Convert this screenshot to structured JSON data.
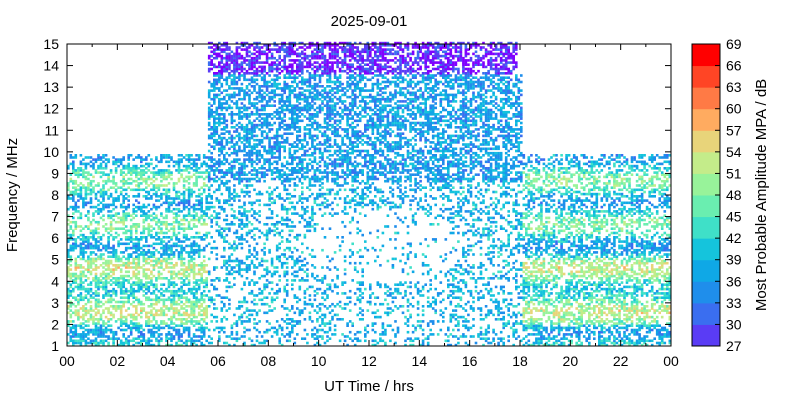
{
  "chart_data": {
    "type": "heatmap",
    "title": "2025-09-01",
    "xlabel": "UT Time / hrs",
    "ylabel": "Frequency / MHz",
    "colorbar_label": "Most Probable Amplitude MPA / dB",
    "xlim": [
      0,
      24
    ],
    "ylim": [
      1,
      15
    ],
    "x_ticks": [
      "00",
      "02",
      "04",
      "06",
      "08",
      "10",
      "12",
      "14",
      "16",
      "18",
      "20",
      "22",
      "00"
    ],
    "y_ticks": [
      "1",
      "2",
      "3",
      "4",
      "5",
      "6",
      "7",
      "8",
      "9",
      "10",
      "11",
      "12",
      "13",
      "14",
      "15"
    ],
    "colorbar_ticks": [
      "27",
      "30",
      "33",
      "36",
      "39",
      "42",
      "45",
      "48",
      "51",
      "54",
      "57",
      "60",
      "63",
      "66",
      "69"
    ],
    "colorbar_range": [
      27,
      69
    ],
    "colorbar_colors": [
      "#8000ff",
      "#5a3cf5",
      "#3a6ef0",
      "#1f8eeb",
      "#0fa8e6",
      "#15c4dc",
      "#3fe0c8",
      "#6aeeb0",
      "#98f39a",
      "#c4ec8a",
      "#e8d47a",
      "#ffab60",
      "#ff7a45",
      "#ff4525",
      "#ff0000"
    ],
    "regions": [
      {
        "x": [
          0,
          5.5
        ],
        "y_max": 9.8,
        "description_level": "night"
      },
      {
        "x": [
          5.5,
          18
        ],
        "y_max": 15,
        "description_level": "day"
      },
      {
        "x": [
          18,
          24
        ],
        "y_max": 9.8,
        "description_level": "night"
      }
    ],
    "grid": false,
    "legend": "colorbar-right"
  }
}
